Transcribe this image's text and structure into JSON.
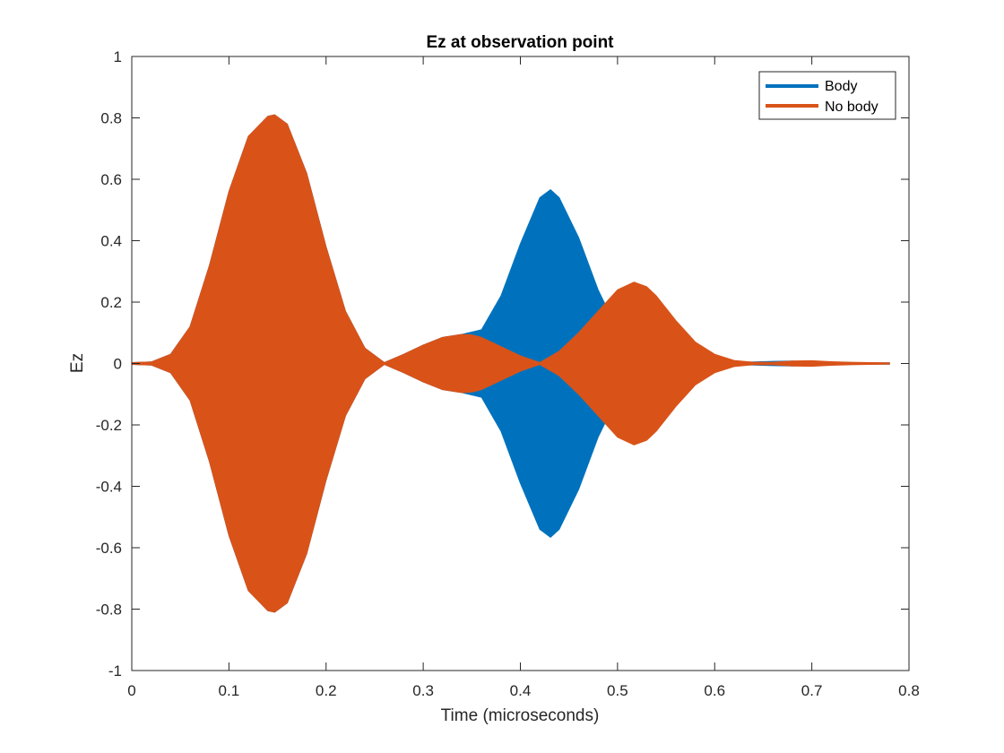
{
  "chart_data": {
    "type": "area",
    "title": "Ez at observation point",
    "xlabel": "Time (microseconds)",
    "ylabel": "Ez",
    "xlim": [
      0,
      0.8
    ],
    "ylim": [
      -1,
      1
    ],
    "xticks": [
      0,
      0.1,
      0.2,
      0.3,
      0.4,
      0.5,
      0.6,
      0.7,
      0.8
    ],
    "xtick_labels": [
      "0",
      "0.1",
      "0.2",
      "0.3",
      "0.4",
      "0.5",
      "0.6",
      "0.7",
      "0.8"
    ],
    "yticks": [
      -1,
      -0.8,
      -0.6,
      -0.4,
      -0.2,
      0,
      0.2,
      0.4,
      0.6,
      0.8,
      1
    ],
    "ytick_labels": [
      "-1",
      "-0.8",
      "-0.6",
      "-0.4",
      "-0.2",
      "0",
      "0.2",
      "0.4",
      "0.6",
      "0.8",
      "1"
    ],
    "grid": false,
    "legend_position": "top-right",
    "series": [
      {
        "name": "Body",
        "color": "#0072BD",
        "envelope": {
          "x": [
            0,
            0.02,
            0.04,
            0.06,
            0.08,
            0.1,
            0.12,
            0.14,
            0.147,
            0.16,
            0.18,
            0.2,
            0.22,
            0.24,
            0.26,
            0.28,
            0.3,
            0.32,
            0.34,
            0.36,
            0.38,
            0.4,
            0.42,
            0.431,
            0.44,
            0.46,
            0.48,
            0.5,
            0.52,
            0.54,
            0.56,
            0.58,
            0.6,
            0.62,
            0.64,
            0.66,
            0.68,
            0.7,
            0.72,
            0.74,
            0.76,
            0.78
          ],
          "y": [
            0.003,
            0.005,
            0.03,
            0.12,
            0.32,
            0.56,
            0.74,
            0.805,
            0.81,
            0.78,
            0.62,
            0.38,
            0.17,
            0.05,
            0.003,
            0.03,
            0.06,
            0.085,
            0.095,
            0.11,
            0.22,
            0.39,
            0.54,
            0.566,
            0.54,
            0.41,
            0.24,
            0.11,
            0.05,
            0.03,
            0.015,
            0.008,
            0.004,
            0.003,
            0.005,
            0.007,
            0.008,
            0.006,
            0.004,
            0.003,
            0.002,
            0.002
          ]
        }
      },
      {
        "name": "No body",
        "color": "#D95319",
        "envelope": {
          "x": [
            0,
            0.02,
            0.04,
            0.06,
            0.08,
            0.1,
            0.12,
            0.14,
            0.147,
            0.16,
            0.18,
            0.2,
            0.22,
            0.24,
            0.26,
            0.28,
            0.3,
            0.32,
            0.34,
            0.35,
            0.36,
            0.38,
            0.4,
            0.42,
            0.44,
            0.46,
            0.48,
            0.5,
            0.517,
            0.53,
            0.54,
            0.56,
            0.58,
            0.6,
            0.62,
            0.64,
            0.66,
            0.68,
            0.7,
            0.72,
            0.74,
            0.76,
            0.78
          ],
          "y": [
            0.003,
            0.005,
            0.03,
            0.12,
            0.32,
            0.56,
            0.74,
            0.805,
            0.81,
            0.78,
            0.62,
            0.38,
            0.17,
            0.05,
            0.003,
            0.03,
            0.06,
            0.085,
            0.095,
            0.093,
            0.085,
            0.055,
            0.025,
            0.003,
            0.04,
            0.1,
            0.17,
            0.24,
            0.265,
            0.25,
            0.22,
            0.14,
            0.07,
            0.03,
            0.01,
            0.004,
            0.004,
            0.008,
            0.009,
            0.006,
            0.004,
            0.003,
            0.002
          ]
        }
      }
    ]
  }
}
